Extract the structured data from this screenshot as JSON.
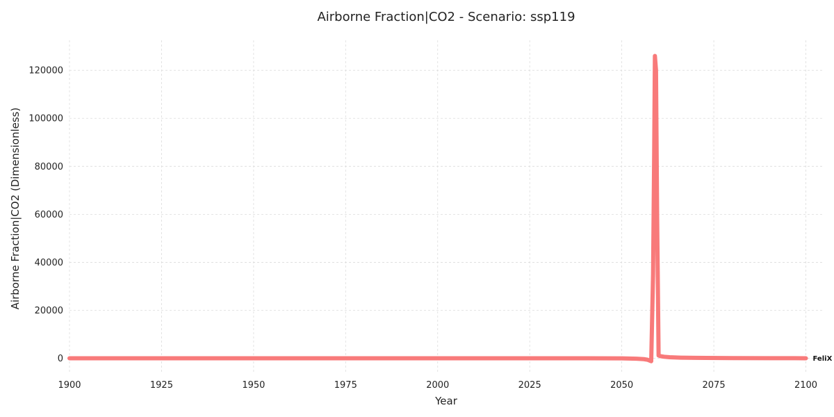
{
  "chart_data": {
    "type": "line",
    "title": "Airborne Fraction|CO2 - Scenario: ssp119",
    "xlabel": "Year",
    "ylabel": "Airborne Fraction|CO2 (Dimensionless)",
    "xlim": [
      1900,
      2105
    ],
    "ylim": [
      -6500,
      132500
    ],
    "xticks": [
      1900,
      1925,
      1950,
      1975,
      2000,
      2025,
      2050,
      2075,
      2100
    ],
    "yticks": [
      0,
      20000,
      40000,
      60000,
      80000,
      100000,
      120000
    ],
    "grid": true,
    "series": [
      {
        "name": "FeliX",
        "color": "#f87a7a",
        "x": [
          1900,
          1950,
          2000,
          2040,
          2050,
          2054,
          2056,
          2057,
          2057.5,
          2058,
          2058.5,
          2058.8,
          2059.0,
          2059.3,
          2059.6,
          2060.0,
          2060.5,
          2061.5,
          2063,
          2066,
          2070,
          2080,
          2090,
          2100
        ],
        "y": [
          0,
          0,
          0,
          0,
          -30,
          -150,
          -350,
          -600,
          -900,
          -1200,
          35000,
          85000,
          126000,
          120000,
          60000,
          1200,
          900,
          650,
          450,
          280,
          180,
          90,
          50,
          30
        ]
      }
    ]
  }
}
